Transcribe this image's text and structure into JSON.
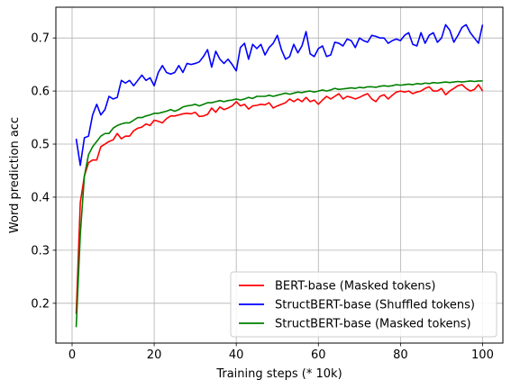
{
  "chart_data": {
    "type": "line",
    "xlabel": "Training steps (* 10k)",
    "ylabel": "Word prediction acc",
    "xlim": [
      -3.95,
      104.95
    ],
    "ylim": [
      0.125,
      0.758
    ],
    "xticks": [
      0,
      20,
      40,
      60,
      80,
      100
    ],
    "yticks": [
      0.2,
      0.3,
      0.4,
      0.5,
      0.6,
      0.7
    ],
    "grid": true,
    "legend_position": "lower-right",
    "series": [
      {
        "name": "BERT-base (Masked tokens)",
        "color": "#ff0000",
        "x": [
          1,
          2,
          3,
          4,
          5,
          6,
          7,
          8,
          9,
          10,
          11,
          12,
          13,
          14,
          15,
          16,
          17,
          18,
          19,
          20,
          21,
          22,
          23,
          24,
          25,
          26,
          27,
          28,
          29,
          30,
          31,
          32,
          33,
          34,
          35,
          36,
          37,
          38,
          39,
          40,
          41,
          42,
          43,
          44,
          45,
          46,
          47,
          48,
          49,
          50,
          51,
          52,
          53,
          54,
          55,
          56,
          57,
          58,
          59,
          60,
          61,
          62,
          63,
          64,
          65,
          66,
          67,
          68,
          69,
          70,
          71,
          72,
          73,
          74,
          75,
          76,
          77,
          78,
          79,
          80,
          81,
          82,
          83,
          84,
          85,
          86,
          87,
          88,
          89,
          90,
          91,
          92,
          93,
          94,
          95,
          96,
          97,
          98,
          99,
          100
        ],
        "y": [
          0.18,
          0.39,
          0.44,
          0.465,
          0.47,
          0.47,
          0.495,
          0.5,
          0.505,
          0.508,
          0.52,
          0.51,
          0.515,
          0.515,
          0.525,
          0.53,
          0.532,
          0.538,
          0.535,
          0.545,
          0.543,
          0.54,
          0.548,
          0.553,
          0.553,
          0.555,
          0.557,
          0.558,
          0.557,
          0.56,
          0.552,
          0.553,
          0.556,
          0.568,
          0.56,
          0.57,
          0.565,
          0.568,
          0.572,
          0.58,
          0.572,
          0.575,
          0.566,
          0.572,
          0.573,
          0.575,
          0.574,
          0.578,
          0.568,
          0.572,
          0.575,
          0.578,
          0.585,
          0.58,
          0.585,
          0.58,
          0.588,
          0.58,
          0.583,
          0.575,
          0.583,
          0.59,
          0.585,
          0.59,
          0.595,
          0.585,
          0.59,
          0.588,
          0.585,
          0.588,
          0.592,
          0.595,
          0.585,
          0.58,
          0.59,
          0.593,
          0.585,
          0.592,
          0.598,
          0.6,
          0.598,
          0.6,
          0.595,
          0.598,
          0.6,
          0.605,
          0.608,
          0.6,
          0.6,
          0.605,
          0.593,
          0.6,
          0.605,
          0.61,
          0.612,
          0.605,
          0.6,
          0.603,
          0.612,
          0.6
        ]
      },
      {
        "name": "StructBERT-base (Shuffled tokens)",
        "color": "#0000ff",
        "x": [
          1,
          2,
          3,
          4,
          5,
          6,
          7,
          8,
          9,
          10,
          11,
          12,
          13,
          14,
          15,
          16,
          17,
          18,
          19,
          20,
          21,
          22,
          23,
          24,
          25,
          26,
          27,
          28,
          29,
          30,
          31,
          32,
          33,
          34,
          35,
          36,
          37,
          38,
          39,
          40,
          41,
          42,
          43,
          44,
          45,
          46,
          47,
          48,
          49,
          50,
          51,
          52,
          53,
          54,
          55,
          56,
          57,
          58,
          59,
          60,
          61,
          62,
          63,
          64,
          65,
          66,
          67,
          68,
          69,
          70,
          71,
          72,
          73,
          74,
          75,
          76,
          77,
          78,
          79,
          80,
          81,
          82,
          83,
          84,
          85,
          86,
          87,
          88,
          89,
          90,
          91,
          92,
          93,
          94,
          95,
          96,
          97,
          98,
          99,
          100
        ],
        "y": [
          0.51,
          0.46,
          0.512,
          0.515,
          0.555,
          0.575,
          0.555,
          0.565,
          0.59,
          0.585,
          0.588,
          0.62,
          0.615,
          0.62,
          0.61,
          0.62,
          0.63,
          0.62,
          0.625,
          0.61,
          0.635,
          0.648,
          0.635,
          0.632,
          0.635,
          0.648,
          0.635,
          0.652,
          0.65,
          0.652,
          0.655,
          0.665,
          0.678,
          0.645,
          0.675,
          0.66,
          0.652,
          0.66,
          0.65,
          0.638,
          0.682,
          0.69,
          0.66,
          0.688,
          0.68,
          0.688,
          0.668,
          0.682,
          0.69,
          0.705,
          0.678,
          0.66,
          0.665,
          0.688,
          0.672,
          0.685,
          0.712,
          0.67,
          0.665,
          0.68,
          0.685,
          0.665,
          0.668,
          0.692,
          0.69,
          0.685,
          0.698,
          0.695,
          0.682,
          0.7,
          0.695,
          0.692,
          0.705,
          0.703,
          0.7,
          0.7,
          0.69,
          0.695,
          0.698,
          0.695,
          0.705,
          0.71,
          0.688,
          0.685,
          0.71,
          0.69,
          0.705,
          0.71,
          0.692,
          0.7,
          0.725,
          0.715,
          0.692,
          0.705,
          0.72,
          0.725,
          0.71,
          0.7,
          0.69,
          0.725
        ]
      },
      {
        "name": "StructBERT-base (Masked tokens)",
        "color": "#008000",
        "x": [
          1,
          2,
          3,
          4,
          5,
          6,
          7,
          8,
          9,
          10,
          11,
          12,
          13,
          14,
          15,
          16,
          17,
          18,
          19,
          20,
          21,
          22,
          23,
          24,
          25,
          26,
          27,
          28,
          29,
          30,
          31,
          32,
          33,
          34,
          35,
          36,
          37,
          38,
          39,
          40,
          41,
          42,
          43,
          44,
          45,
          46,
          47,
          48,
          49,
          50,
          51,
          52,
          53,
          54,
          55,
          56,
          57,
          58,
          59,
          60,
          61,
          62,
          63,
          64,
          65,
          66,
          67,
          68,
          69,
          70,
          71,
          72,
          73,
          74,
          75,
          76,
          77,
          78,
          79,
          80,
          81,
          82,
          83,
          84,
          85,
          86,
          87,
          88,
          89,
          90,
          91,
          92,
          93,
          94,
          95,
          96,
          97,
          98,
          99,
          100
        ],
        "y": [
          0.155,
          0.33,
          0.44,
          0.48,
          0.495,
          0.505,
          0.515,
          0.52,
          0.52,
          0.53,
          0.535,
          0.538,
          0.54,
          0.54,
          0.545,
          0.55,
          0.55,
          0.553,
          0.555,
          0.558,
          0.558,
          0.56,
          0.562,
          0.565,
          0.562,
          0.565,
          0.57,
          0.572,
          0.573,
          0.575,
          0.572,
          0.575,
          0.578,
          0.578,
          0.58,
          0.582,
          0.58,
          0.582,
          0.583,
          0.585,
          0.583,
          0.585,
          0.588,
          0.586,
          0.59,
          0.59,
          0.59,
          0.592,
          0.59,
          0.592,
          0.594,
          0.596,
          0.594,
          0.596,
          0.598,
          0.597,
          0.599,
          0.6,
          0.598,
          0.6,
          0.602,
          0.6,
          0.602,
          0.605,
          0.603,
          0.604,
          0.605,
          0.606,
          0.605,
          0.607,
          0.606,
          0.608,
          0.608,
          0.607,
          0.609,
          0.61,
          0.609,
          0.61,
          0.612,
          0.611,
          0.612,
          0.613,
          0.612,
          0.614,
          0.613,
          0.615,
          0.614,
          0.616,
          0.615,
          0.616,
          0.617,
          0.616,
          0.617,
          0.618,
          0.617,
          0.618,
          0.619,
          0.618,
          0.619,
          0.619
        ]
      }
    ]
  }
}
